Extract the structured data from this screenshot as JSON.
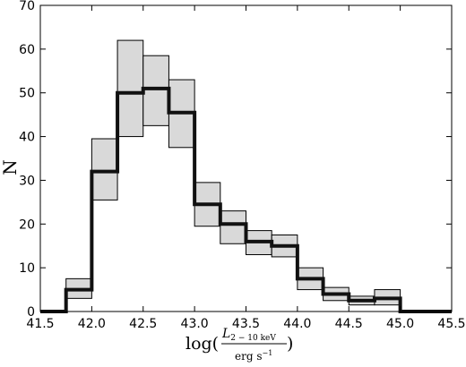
{
  "chart_data": {
    "type": "bar",
    "style": "step-histogram-with-error-band",
    "title": "",
    "xlabel": {
      "prefix": "log(",
      "numerator_symbol": "L",
      "numerator_subscript": "2 − 10 keV",
      "denominator": "erg s",
      "denominator_exponent": "−1",
      "suffix": ")"
    },
    "ylabel": "N",
    "xlim": [
      41.5,
      45.5
    ],
    "ylim": [
      0,
      70
    ],
    "xticks": [
      "41.5",
      "42.0",
      "42.5",
      "43.0",
      "43.5",
      "44.0",
      "44.5",
      "45.0",
      "45.5"
    ],
    "yticks": [
      "0",
      "10",
      "20",
      "30",
      "40",
      "50",
      "60",
      "70"
    ],
    "grid": false,
    "legend": "none",
    "bin_edges": [
      41.5,
      41.75,
      42.0,
      42.25,
      42.5,
      42.75,
      43.0,
      43.25,
      43.5,
      43.75,
      44.0,
      44.25,
      44.5,
      44.75,
      45.0,
      45.25,
      45.5
    ],
    "series": [
      {
        "values": [
          0,
          5,
          32,
          50,
          51,
          45.5,
          24.5,
          20,
          16,
          15,
          7.5,
          4,
          2.5,
          3,
          0,
          0
        ],
        "lower": [
          0,
          3,
          25.5,
          40,
          42.5,
          37.5,
          19.5,
          15.5,
          13,
          12.5,
          5,
          2.5,
          1.5,
          1.5,
          0,
          0
        ],
        "upper": [
          0,
          7.5,
          39.5,
          62,
          58.5,
          53,
          29.5,
          23,
          18.5,
          17.5,
          10,
          5.5,
          3.5,
          5,
          0,
          0
        ]
      }
    ],
    "colors": {
      "band_fill": "#d9d9d9",
      "band_edge": "#000000",
      "line": "#111111"
    }
  }
}
